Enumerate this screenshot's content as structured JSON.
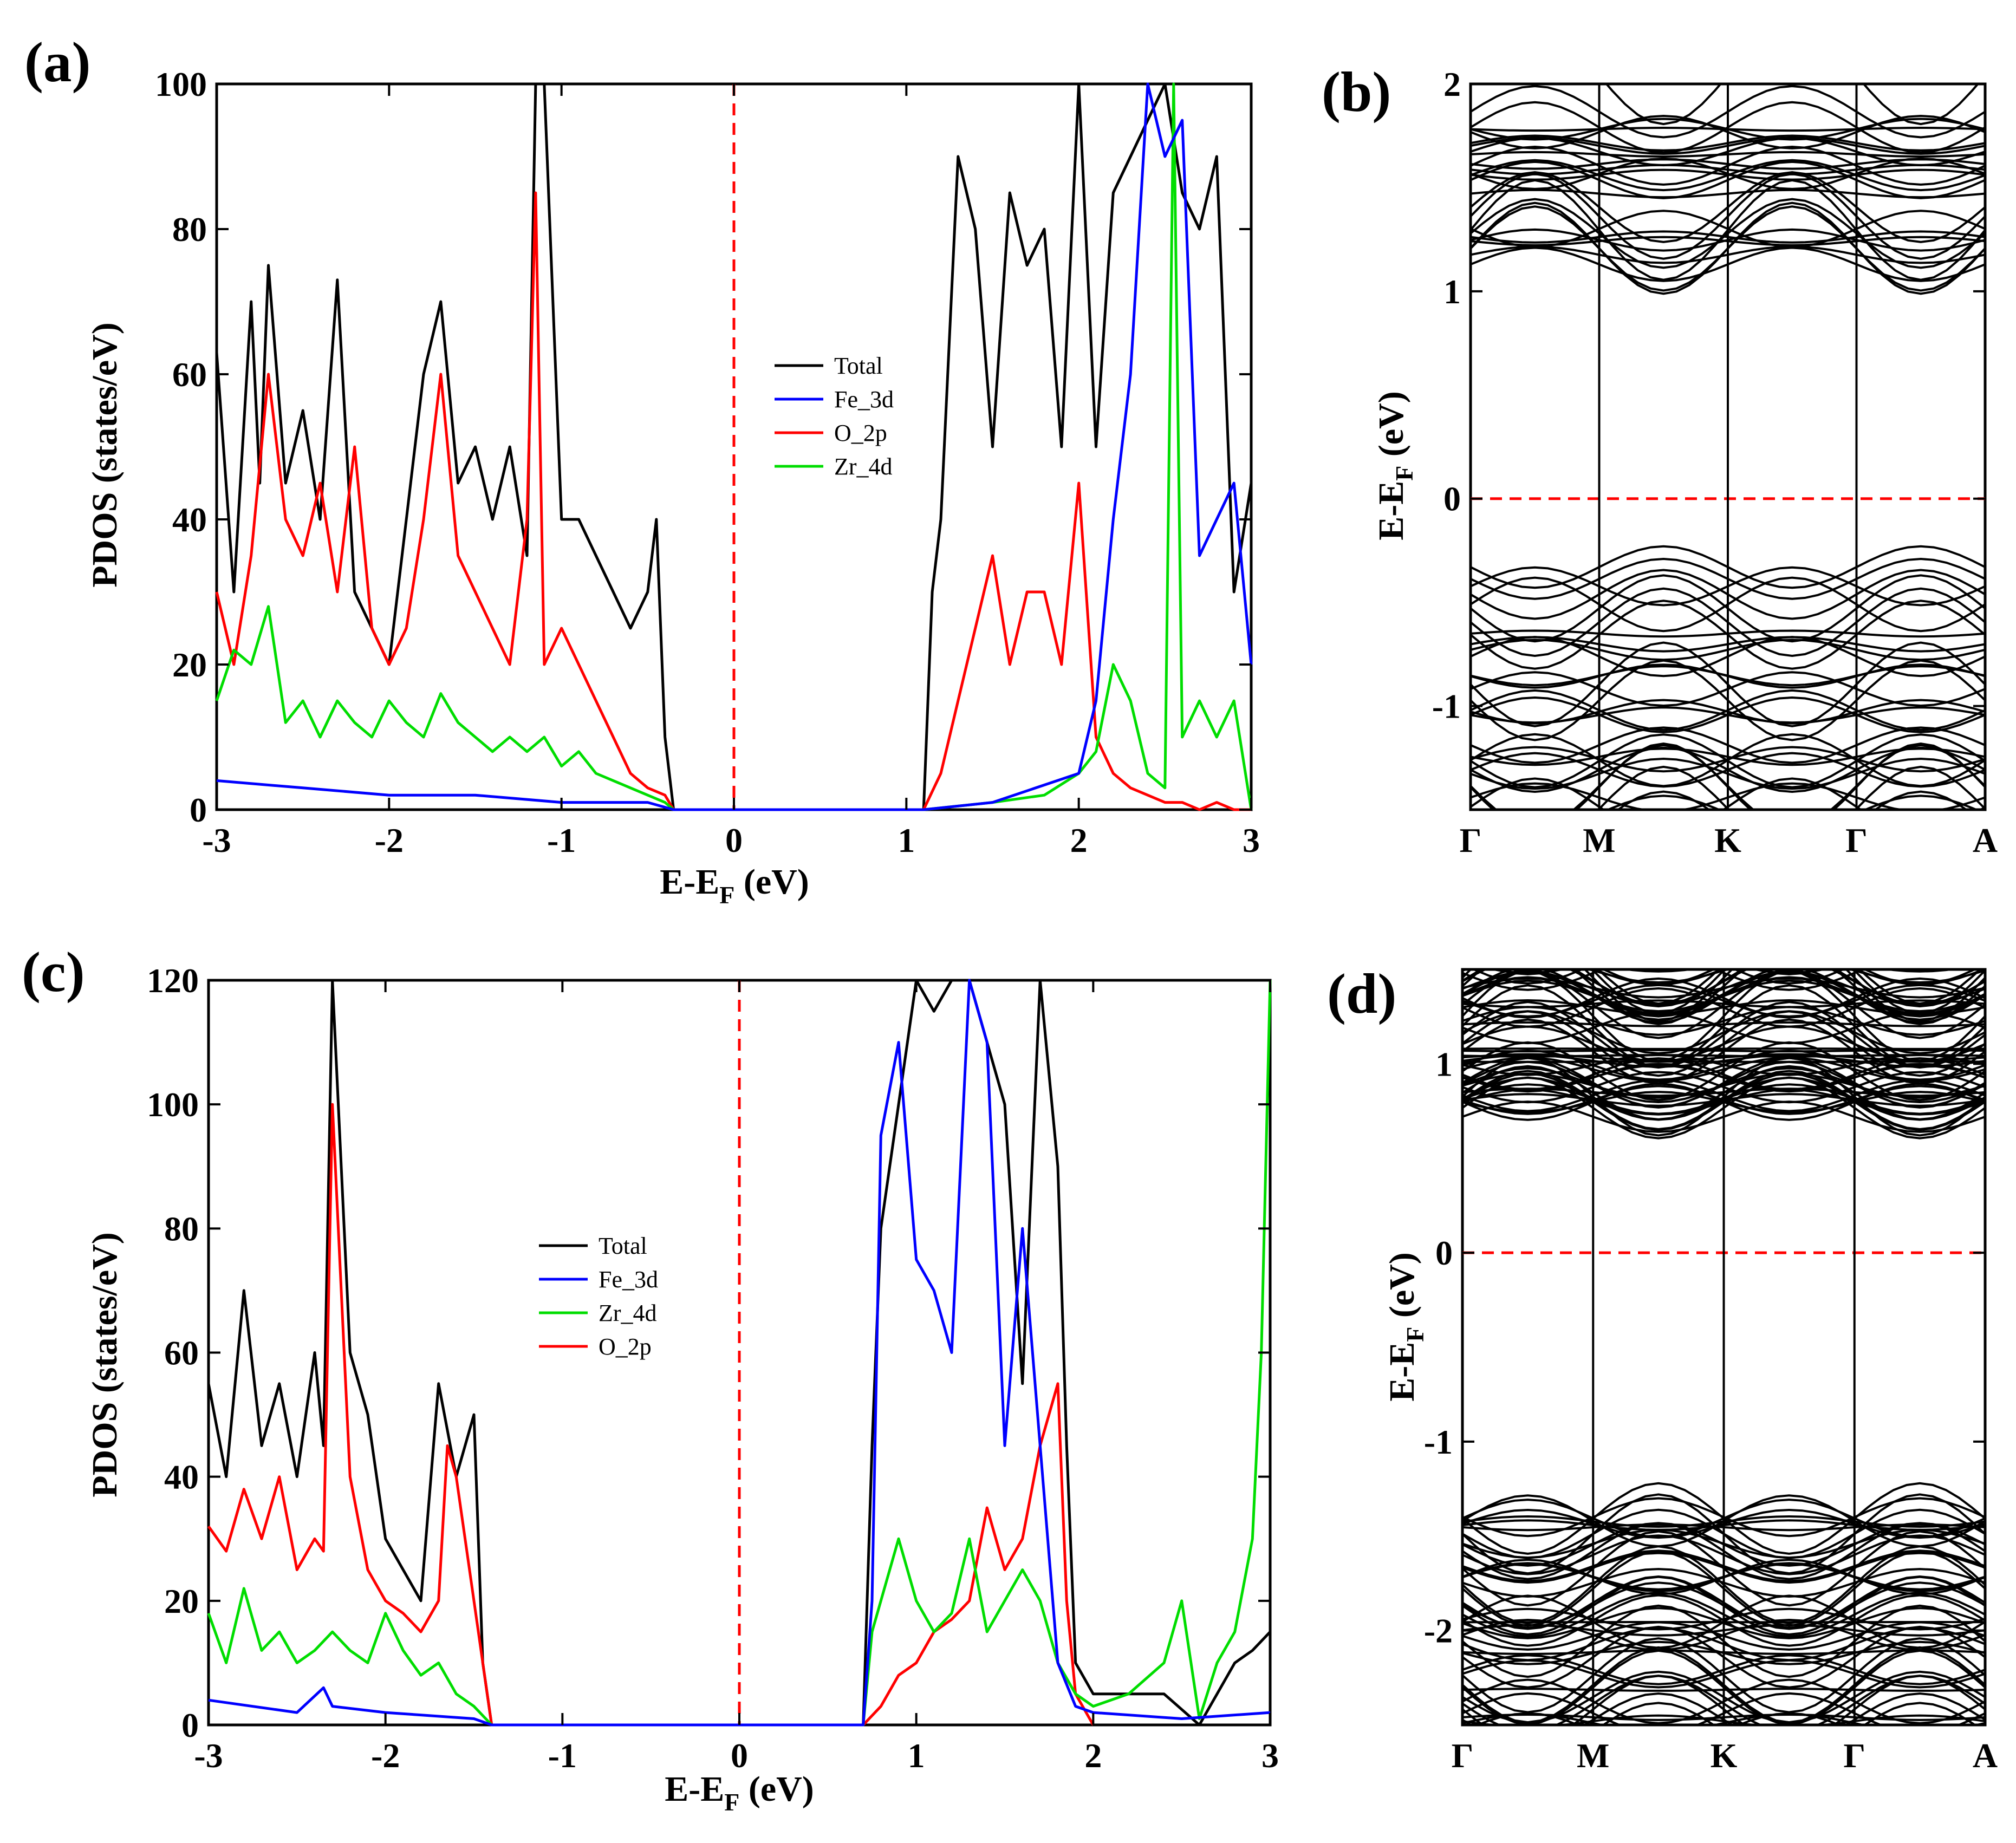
{
  "figure": {
    "title": ""
  },
  "chart_data": [
    {
      "panel": "(a)",
      "type": "line",
      "xlabel": "E-E",
      "xlabel_sub": "F",
      "xlabel_unit": " (eV)",
      "ylabel": "PDOS (states/eV)",
      "xlim": [
        -3,
        3
      ],
      "ylim": [
        0,
        100
      ],
      "xticks": [
        -3,
        -2,
        -1,
        0,
        1,
        2,
        3
      ],
      "yticks": [
        0,
        20,
        40,
        60,
        80,
        100
      ],
      "fermi_level": 0,
      "legend_position": "center",
      "legend": [
        "Total",
        "Fe_3d",
        "O_2p",
        "Zr_4d"
      ],
      "colors": {
        "Total": "#000000",
        "Fe_3d": "#0000ff",
        "O_2p": "#ff0000",
        "Zr_4d": "#00dd00",
        "fermi": "#ff0000"
      },
      "series": [
        {
          "name": "Total",
          "x": [
            -3.0,
            -2.9,
            -2.8,
            -2.75,
            -2.7,
            -2.6,
            -2.5,
            -2.4,
            -2.3,
            -2.2,
            -2.1,
            -2.0,
            -1.9,
            -1.8,
            -1.7,
            -1.6,
            -1.5,
            -1.4,
            -1.3,
            -1.2,
            -1.15,
            -1.1,
            -1.05,
            -1.0,
            -0.9,
            -0.8,
            -0.7,
            -0.6,
            -0.5,
            -0.45,
            -0.4,
            -0.35,
            1.1,
            1.15,
            1.2,
            1.3,
            1.4,
            1.5,
            1.6,
            1.7,
            1.8,
            1.9,
            2.0,
            2.1,
            2.2,
            2.3,
            2.4,
            2.5,
            2.6,
            2.7,
            2.8,
            2.9,
            3.0
          ],
          "values": [
            63,
            30,
            70,
            45,
            75,
            45,
            55,
            40,
            73,
            30,
            25,
            20,
            40,
            60,
            70,
            45,
            50,
            40,
            50,
            35,
            100,
            100,
            70,
            40,
            40,
            35,
            30,
            25,
            30,
            40,
            10,
            0,
            0,
            30,
            40,
            90,
            80,
            50,
            85,
            75,
            80,
            50,
            100,
            50,
            85,
            90,
            95,
            100,
            85,
            80,
            90,
            30,
            45
          ]
        },
        {
          "name": "Fe_3d",
          "x": [
            -3.0,
            -2.5,
            -2.0,
            -1.5,
            -1.0,
            -0.5,
            -0.35,
            1.1,
            1.5,
            2.0,
            2.1,
            2.2,
            2.3,
            2.4,
            2.5,
            2.6,
            2.7,
            2.8,
            2.9,
            3.0
          ],
          "values": [
            4,
            3,
            2,
            2,
            1,
            1,
            0,
            0,
            1,
            5,
            15,
            40,
            60,
            100,
            90,
            95,
            35,
            40,
            45,
            20
          ]
        },
        {
          "name": "O_2p",
          "x": [
            -3.0,
            -2.9,
            -2.8,
            -2.7,
            -2.6,
            -2.5,
            -2.4,
            -2.3,
            -2.2,
            -2.1,
            -2.0,
            -1.9,
            -1.8,
            -1.7,
            -1.6,
            -1.5,
            -1.4,
            -1.3,
            -1.2,
            -1.15,
            -1.1,
            -1.0,
            -0.9,
            -0.8,
            -0.7,
            -0.6,
            -0.5,
            -0.4,
            -0.35,
            1.1,
            1.2,
            1.3,
            1.4,
            1.5,
            1.6,
            1.7,
            1.8,
            1.9,
            2.0,
            2.1,
            2.2,
            2.3,
            2.4,
            2.5,
            2.6,
            2.7,
            2.8,
            2.9,
            3.0
          ],
          "values": [
            30,
            20,
            35,
            60,
            40,
            35,
            45,
            30,
            50,
            25,
            20,
            25,
            40,
            60,
            35,
            30,
            25,
            20,
            40,
            85,
            20,
            25,
            20,
            15,
            10,
            5,
            3,
            2,
            0,
            0,
            5,
            15,
            25,
            35,
            20,
            30,
            30,
            20,
            45,
            10,
            5,
            3,
            2,
            1,
            1,
            0,
            1,
            0,
            0
          ]
        },
        {
          "name": "Zr_4d",
          "x": [
            -3.0,
            -2.9,
            -2.8,
            -2.7,
            -2.6,
            -2.5,
            -2.4,
            -2.3,
            -2.2,
            -2.1,
            -2.0,
            -1.9,
            -1.8,
            -1.7,
            -1.6,
            -1.5,
            -1.4,
            -1.3,
            -1.2,
            -1.1,
            -1.0,
            -0.9,
            -0.8,
            -0.7,
            -0.6,
            -0.5,
            -0.4,
            -0.35,
            1.1,
            1.5,
            1.8,
            2.0,
            2.1,
            2.2,
            2.3,
            2.4,
            2.5,
            2.55,
            2.6,
            2.7,
            2.8,
            2.9,
            3.0
          ],
          "values": [
            15,
            22,
            20,
            28,
            12,
            15,
            10,
            15,
            12,
            10,
            15,
            12,
            10,
            16,
            12,
            10,
            8,
            10,
            8,
            10,
            6,
            8,
            5,
            4,
            3,
            2,
            1,
            0,
            0,
            1,
            2,
            5,
            8,
            20,
            15,
            5,
            3,
            100,
            10,
            15,
            10,
            15,
            0
          ]
        }
      ]
    },
    {
      "panel": "(b)",
      "type": "line",
      "ylabel": "E-E",
      "ylabel_sub": "F",
      "ylabel_unit": " (eV)",
      "ylim": [
        -1.5,
        2
      ],
      "yticks": [
        -1,
        0,
        1,
        2
      ],
      "kpath": [
        "Γ",
        "M",
        "K",
        "Γ",
        "A"
      ],
      "fermi_level": 0,
      "conduction_band_min": 1.13,
      "valence_band_max": -0.33
    },
    {
      "panel": "(c)",
      "type": "line",
      "xlabel": "E-E",
      "xlabel_sub": "F",
      "xlabel_unit": " (eV)",
      "ylabel": "PDOS (states/eV)",
      "xlim": [
        -3,
        3
      ],
      "ylim": [
        0,
        120
      ],
      "xticks": [
        -3,
        -2,
        -1,
        0,
        1,
        2,
        3
      ],
      "yticks": [
        0,
        20,
        40,
        60,
        80,
        100,
        120
      ],
      "fermi_level": 0,
      "legend_position": "center-left",
      "legend": [
        "Total",
        "Fe_3d",
        "Zr_4d",
        "O_2p"
      ],
      "colors": {
        "Total": "#000000",
        "Fe_3d": "#0000ff",
        "O_2p": "#ff0000",
        "Zr_4d": "#00dd00",
        "fermi": "#ff0000"
      },
      "series": [
        {
          "name": "Total",
          "x": [
            -3.0,
            -2.9,
            -2.8,
            -2.7,
            -2.6,
            -2.5,
            -2.4,
            -2.35,
            -2.3,
            -2.2,
            -2.1,
            -2.0,
            -1.9,
            -1.8,
            -1.7,
            -1.6,
            -1.5,
            -1.45,
            -1.4,
            0.7,
            0.75,
            0.8,
            0.9,
            1.0,
            1.1,
            1.2,
            1.3,
            1.4,
            1.5,
            1.6,
            1.7,
            1.8,
            1.85,
            1.9,
            2.0,
            2.2,
            2.4,
            2.6,
            2.7,
            2.8,
            2.9,
            3.0
          ],
          "values": [
            55,
            40,
            70,
            45,
            55,
            40,
            60,
            45,
            120,
            60,
            50,
            30,
            25,
            20,
            55,
            40,
            50,
            10,
            0,
            0,
            45,
            80,
            100,
            120,
            115,
            120,
            120,
            110,
            100,
            55,
            120,
            90,
            45,
            10,
            5,
            5,
            5,
            0,
            5,
            10,
            12,
            15
          ]
        },
        {
          "name": "Fe_3d",
          "x": [
            -3.0,
            -2.5,
            -2.35,
            -2.3,
            -2.0,
            -1.5,
            -1.4,
            0.7,
            0.75,
            0.8,
            0.9,
            1.0,
            1.1,
            1.2,
            1.3,
            1.4,
            1.5,
            1.6,
            1.7,
            1.8,
            1.9,
            2.0,
            2.5,
            3.0
          ],
          "values": [
            4,
            2,
            6,
            3,
            2,
            1,
            0,
            0,
            20,
            95,
            110,
            75,
            70,
            60,
            120,
            110,
            45,
            80,
            45,
            10,
            3,
            2,
            1,
            2
          ]
        },
        {
          "name": "Zr_4d",
          "x": [
            -3.0,
            -2.9,
            -2.8,
            -2.7,
            -2.6,
            -2.5,
            -2.4,
            -2.3,
            -2.2,
            -2.1,
            -2.0,
            -1.9,
            -1.8,
            -1.7,
            -1.6,
            -1.5,
            -1.4,
            0.7,
            0.75,
            0.8,
            0.9,
            1.0,
            1.1,
            1.2,
            1.3,
            1.4,
            1.5,
            1.6,
            1.7,
            1.8,
            1.9,
            2.0,
            2.2,
            2.4,
            2.5,
            2.6,
            2.7,
            2.8,
            2.9,
            2.95,
            3.0
          ],
          "values": [
            18,
            10,
            22,
            12,
            15,
            10,
            12,
            15,
            12,
            10,
            18,
            12,
            8,
            10,
            5,
            3,
            0,
            0,
            15,
            20,
            30,
            20,
            15,
            18,
            30,
            15,
            20,
            25,
            20,
            10,
            5,
            3,
            5,
            10,
            20,
            1,
            10,
            15,
            30,
            60,
            120
          ]
        },
        {
          "name": "O_2p",
          "x": [
            -3.0,
            -2.9,
            -2.8,
            -2.7,
            -2.6,
            -2.5,
            -2.4,
            -2.35,
            -2.3,
            -2.2,
            -2.1,
            -2.0,
            -1.9,
            -1.8,
            -1.7,
            -1.65,
            -1.6,
            -1.5,
            -1.4,
            0.7,
            0.8,
            0.9,
            1.0,
            1.1,
            1.2,
            1.3,
            1.4,
            1.5,
            1.6,
            1.7,
            1.8,
            1.85,
            1.9,
            2.0
          ],
          "values": [
            32,
            28,
            38,
            30,
            40,
            25,
            30,
            28,
            100,
            40,
            25,
            20,
            18,
            15,
            20,
            45,
            40,
            20,
            0,
            0,
            3,
            8,
            10,
            15,
            17,
            20,
            35,
            25,
            30,
            45,
            55,
            20,
            5,
            0
          ]
        }
      ]
    },
    {
      "panel": "(d)",
      "type": "line",
      "ylabel": "E-E",
      "ylabel_sub": "F",
      "ylabel_unit": " (eV)",
      "ylim": [
        -2.5,
        1.5
      ],
      "yticks": [
        -2,
        -1,
        0,
        1
      ],
      "kpath": [
        "Γ",
        "M",
        "K",
        "Γ",
        "A"
      ],
      "fermi_level": 0,
      "conduction_band_min": 0.72,
      "valence_band_max": -1.4
    }
  ]
}
